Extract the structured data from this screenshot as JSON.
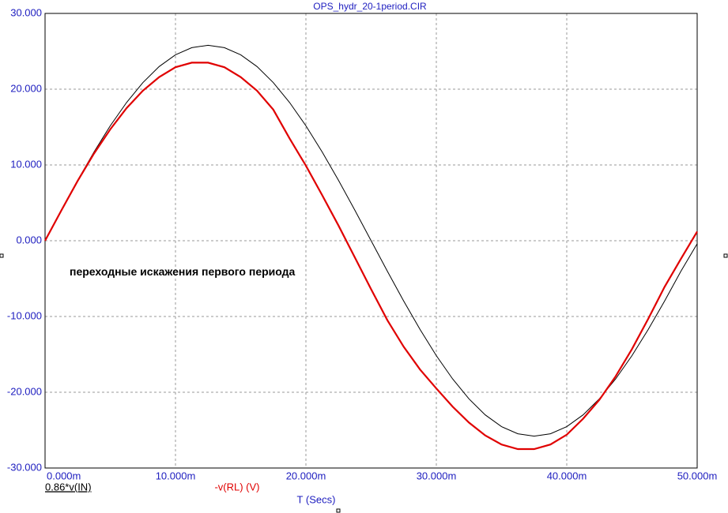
{
  "chart_data": {
    "type": "line",
    "title": "OPS_hydr_20-1period.CIR",
    "xlabel": "T (Secs)",
    "annotation": "переходные искажения первого периода",
    "x": [
      0,
      0.00125,
      0.0025,
      0.00375,
      0.005,
      0.00625,
      0.0075,
      0.00875,
      0.01,
      0.01125,
      0.0125,
      0.01375,
      0.015,
      0.01625,
      0.0175,
      0.01875,
      0.02,
      0.02125,
      0.0225,
      0.02375,
      0.025,
      0.02625,
      0.0275,
      0.02875,
      0.03,
      0.03125,
      0.0325,
      0.03375,
      0.035,
      0.03625,
      0.0375,
      0.03875,
      0.04,
      0.04125,
      0.0425,
      0.04375,
      0.045,
      0.04625,
      0.0475,
      0.04875,
      0.05
    ],
    "series": [
      {
        "name": "0.86*v(IN)",
        "color": "#000000",
        "values": [
          0,
          4.04,
          7.97,
          11.71,
          15.17,
          18.24,
          20.87,
          22.99,
          24.54,
          25.48,
          25.8,
          25.48,
          24.54,
          22.99,
          20.87,
          18.24,
          15.17,
          11.71,
          7.97,
          4.04,
          0,
          -4.04,
          -7.97,
          -11.71,
          -15.17,
          -18.24,
          -20.87,
          -22.99,
          -24.54,
          -25.48,
          -25.8,
          -25.48,
          -24.54,
          -22.99,
          -20.87,
          -18.24,
          -15.17,
          -11.71,
          -7.97,
          -4.04,
          -0.4
        ]
      },
      {
        "name": "-v(RL) (V)",
        "color": "#e00000",
        "values": [
          0,
          4.0,
          7.9,
          11.5,
          14.7,
          17.5,
          19.8,
          21.6,
          22.9,
          23.5,
          23.5,
          22.9,
          21.6,
          19.8,
          17.3,
          13.5,
          9.9,
          6.0,
          2.0,
          -2.2,
          -6.4,
          -10.5,
          -14.0,
          -17.0,
          -19.5,
          -21.9,
          -24.0,
          -25.7,
          -26.9,
          -27.5,
          -27.5,
          -26.9,
          -25.6,
          -23.5,
          -21.0,
          -17.9,
          -14.3,
          -10.3,
          -6.1,
          -2.4,
          1.2
        ]
      }
    ],
    "xlim": [
      0,
      0.05
    ],
    "xticks": [
      {
        "value": 0,
        "label": "0.000m"
      },
      {
        "value": 0.01,
        "label": "10.000m"
      },
      {
        "value": 0.02,
        "label": "20.000m"
      },
      {
        "value": 0.03,
        "label": "30.000m"
      },
      {
        "value": 0.04,
        "label": "40.000m"
      },
      {
        "value": 0.05,
        "label": "50.000m"
      }
    ],
    "ylim": [
      -30,
      30
    ],
    "yticks": [
      {
        "value": -30,
        "label": "-30.000"
      },
      {
        "value": -20,
        "label": "-20.000"
      },
      {
        "value": -10,
        "label": "-10.000"
      },
      {
        "value": 0,
        "label": "0.000"
      },
      {
        "value": 10,
        "label": "10.000"
      },
      {
        "value": 20,
        "label": "20.000"
      },
      {
        "value": 30,
        "label": "30.000"
      }
    ],
    "grid": true
  }
}
